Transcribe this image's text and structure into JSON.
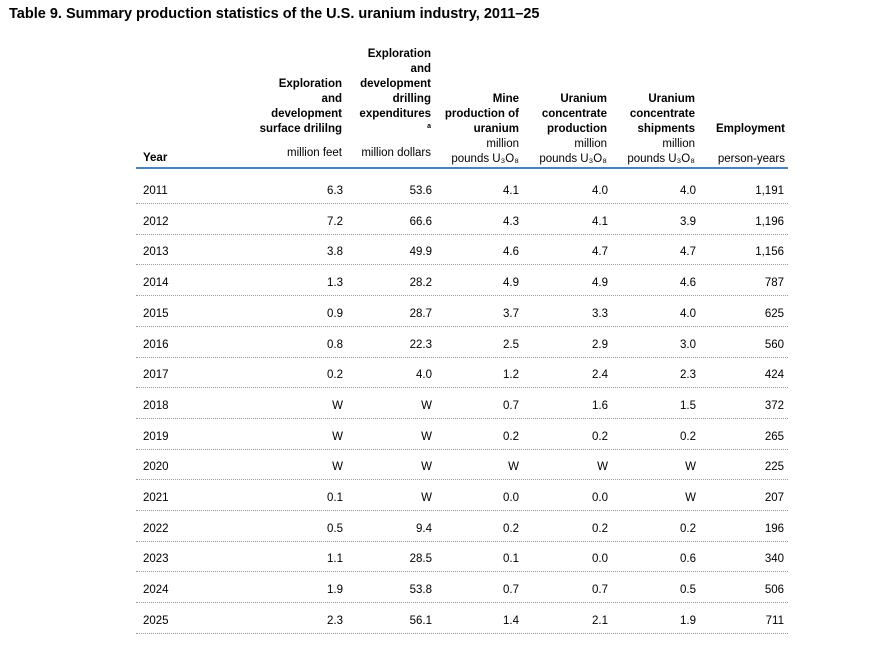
{
  "title": "Table 9. Summary production statistics of the U.S. uranium industry, 2011–25",
  "headers": {
    "year": "Year",
    "surface_drilling": {
      "lines": [
        "Exploration",
        "and",
        "development",
        "surface drililng"
      ],
      "unit": "million feet"
    },
    "drilling_expenditures": {
      "lines": [
        "Exploration",
        "and",
        "development",
        "drilling",
        "expenditures"
      ],
      "note": "a",
      "unit": "million dollars"
    },
    "mine_production": {
      "lines": [
        "Mine",
        "production of",
        "uranium"
      ],
      "unit_line1": "million",
      "unit_line2": "pounds U₃O₈"
    },
    "concentrate_production": {
      "lines": [
        "Uranium",
        "concentrate",
        "production"
      ],
      "unit_line1": "million",
      "unit_line2": "pounds U₃O₈"
    },
    "concentrate_shipments": {
      "lines": [
        "Uranium",
        "concentrate",
        "shipments"
      ],
      "unit_line1": "million",
      "unit_line2": "pounds U₃O₈"
    },
    "employment": {
      "lines": [
        "Employment"
      ],
      "unit": "person-years"
    }
  },
  "rows": [
    {
      "year": "2011",
      "drilling": "6.3",
      "expenditures": "53.6",
      "mine": "4.1",
      "conc_prod": "4.0",
      "conc_ship": "4.0",
      "employment": "1,191"
    },
    {
      "year": "2012",
      "drilling": "7.2",
      "expenditures": "66.6",
      "mine": "4.3",
      "conc_prod": "4.1",
      "conc_ship": "3.9",
      "employment": "1,196"
    },
    {
      "year": "2013",
      "drilling": "3.8",
      "expenditures": "49.9",
      "mine": "4.6",
      "conc_prod": "4.7",
      "conc_ship": "4.7",
      "employment": "1,156"
    },
    {
      "year": "2014",
      "drilling": "1.3",
      "expenditures": "28.2",
      "mine": "4.9",
      "conc_prod": "4.9",
      "conc_ship": "4.6",
      "employment": "787"
    },
    {
      "year": "2015",
      "drilling": "0.9",
      "expenditures": "28.7",
      "mine": "3.7",
      "conc_prod": "3.3",
      "conc_ship": "4.0",
      "employment": "625"
    },
    {
      "year": "2016",
      "drilling": "0.8",
      "expenditures": "22.3",
      "mine": "2.5",
      "conc_prod": "2.9",
      "conc_ship": "3.0",
      "employment": "560"
    },
    {
      "year": "2017",
      "drilling": "0.2",
      "expenditures": "4.0",
      "mine": "1.2",
      "conc_prod": "2.4",
      "conc_ship": "2.3",
      "employment": "424"
    },
    {
      "year": "2018",
      "drilling": "W",
      "expenditures": "W",
      "mine": "0.7",
      "conc_prod": "1.6",
      "conc_ship": "1.5",
      "employment": "372"
    },
    {
      "year": "2019",
      "drilling": "W",
      "expenditures": "W",
      "mine": "0.2",
      "conc_prod": "0.2",
      "conc_ship": "0.2",
      "employment": "265"
    },
    {
      "year": "2020",
      "drilling": "W",
      "expenditures": "W",
      "mine": "W",
      "conc_prod": "W",
      "conc_ship": "W",
      "employment": "225"
    },
    {
      "year": "2021",
      "drilling": "0.1",
      "expenditures": "W",
      "mine": "0.0",
      "conc_prod": "0.0",
      "conc_ship": "W",
      "employment": "207"
    },
    {
      "year": "2022",
      "drilling": "0.5",
      "expenditures": "9.4",
      "mine": "0.2",
      "conc_prod": "0.2",
      "conc_ship": "0.2",
      "employment": "196"
    },
    {
      "year": "2023",
      "drilling": "1.1",
      "expenditures": "28.5",
      "mine": "0.1",
      "conc_prod": "0.0",
      "conc_ship": "0.6",
      "employment": "340"
    },
    {
      "year": "2024",
      "drilling": "1.9",
      "expenditures": "53.8",
      "mine": "0.7",
      "conc_prod": "0.7",
      "conc_ship": "0.5",
      "employment": "506"
    },
    {
      "year": "2025",
      "drilling": "2.3",
      "expenditures": "56.1",
      "mine": "1.4",
      "conc_prod": "2.1",
      "conc_ship": "1.9",
      "employment": "711"
    }
  ]
}
